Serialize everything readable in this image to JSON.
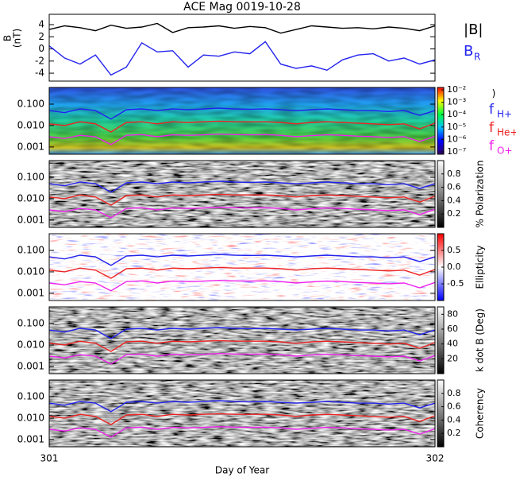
{
  "chart_data": [
    {
      "type": "line",
      "title": "ACE Mag 0019-10-28",
      "ylabel": [
        "B",
        "(nT)"
      ],
      "x": [
        301,
        301.04,
        301.08,
        301.12,
        301.16,
        301.2,
        301.24,
        301.28,
        301.32,
        301.36,
        301.4,
        301.44,
        301.48,
        301.52,
        301.56,
        301.6,
        301.64,
        301.68,
        301.72,
        301.76,
        301.8,
        301.84,
        301.88,
        301.92,
        301.96,
        302
      ],
      "ylim": [
        -5.3,
        5.7
      ],
      "yticks": [
        -4,
        -2,
        0,
        2,
        4
      ],
      "series": [
        {
          "name": "|B|",
          "color": "#000000",
          "values": [
            3.2,
            3.8,
            3.5,
            3.0,
            3.9,
            3.4,
            3.6,
            4.2,
            2.7,
            3.5,
            3.6,
            3.8,
            3.4,
            3.7,
            3.5,
            2.6,
            3.2,
            3.8,
            3.6,
            3.4,
            3.5,
            3.3,
            3.6,
            3.4,
            3.0,
            3.8
          ]
        },
        {
          "name": "B",
          "sub": "R",
          "color": "#2222ee",
          "values": [
            0.5,
            -1.5,
            -2.5,
            -1.0,
            -4.3,
            -3.0,
            1.0,
            -0.5,
            -0.3,
            -3.0,
            -1.0,
            -1.2,
            -0.5,
            -0.8,
            1.2,
            -2.5,
            -3.2,
            -2.8,
            -3.5,
            -1.8,
            -1.0,
            -0.8,
            -2.0,
            -1.5,
            -2.5,
            -1.8
          ]
        }
      ]
    },
    {
      "type": "spectrogram",
      "colormap": "rainbow",
      "log_y": true,
      "x": [
        301,
        301.04,
        301.08,
        301.12,
        301.16,
        301.2,
        301.24,
        301.28,
        301.32,
        301.36,
        301.4,
        301.44,
        301.48,
        301.52,
        301.56,
        301.6,
        301.64,
        301.68,
        301.72,
        301.76,
        301.8,
        301.84,
        301.88,
        301.92,
        301.96,
        302
      ],
      "ylim": [
        0.00046,
        0.6
      ],
      "yticks": [
        {
          "value": 0.1,
          "label": "0.100"
        },
        {
          "value": 0.01,
          "label": "0.010"
        },
        {
          "value": 0.001,
          "label": "0.001"
        }
      ],
      "series": [
        {
          "name": "f",
          "sub": "H+",
          "color": "#2222ee",
          "values": [
            0.05,
            0.04,
            0.06,
            0.05,
            0.02,
            0.055,
            0.06,
            0.05,
            0.06,
            0.055,
            0.06,
            0.065,
            0.06,
            0.058,
            0.06,
            0.055,
            0.05,
            0.055,
            0.06,
            0.055,
            0.05,
            0.05,
            0.045,
            0.05,
            0.03,
            0.05
          ]
        },
        {
          "name": "f",
          "sub": "He+",
          "color": "#ee2222",
          "values": [
            0.012,
            0.01,
            0.015,
            0.012,
            0.005,
            0.014,
            0.015,
            0.012,
            0.015,
            0.014,
            0.015,
            0.016,
            0.015,
            0.015,
            0.015,
            0.014,
            0.012,
            0.014,
            0.015,
            0.014,
            0.013,
            0.012,
            0.011,
            0.012,
            0.007,
            0.013
          ]
        },
        {
          "name": "f",
          "sub": "O+",
          "color": "#ee22ee",
          "values": [
            0.003,
            0.0025,
            0.0035,
            0.003,
            0.0013,
            0.0035,
            0.0038,
            0.003,
            0.0037,
            0.0035,
            0.0037,
            0.004,
            0.0038,
            0.0037,
            0.0038,
            0.0035,
            0.003,
            0.0034,
            0.0037,
            0.0035,
            0.0032,
            0.003,
            0.0028,
            0.003,
            0.0018,
            0.0032
          ]
        }
      ],
      "colorbar": {
        "label": ")",
        "lim": [
          -7.2,
          -1.8
        ],
        "ticks": [
          {
            "value": -2,
            "label": "10⁻²"
          },
          {
            "value": -3,
            "label": "10⁻³"
          },
          {
            "value": -4,
            "label": "10⁻⁴"
          },
          {
            "value": -5,
            "label": "10⁻⁵"
          },
          {
            "value": -6,
            "label": "10⁻⁶"
          },
          {
            "value": -7,
            "label": "10⁻⁷"
          }
        ]
      }
    },
    {
      "type": "spectrogram",
      "colormap": "gray",
      "log_y": true,
      "ylim": [
        0.00046,
        0.6
      ],
      "yticks": [
        {
          "value": 0.1,
          "label": "0.100"
        },
        {
          "value": 0.01,
          "label": "0.010"
        },
        {
          "value": 0.001,
          "label": "0.001"
        }
      ],
      "colorbar": {
        "label": "% Polarization",
        "lim": [
          0,
          1
        ],
        "ticks": [
          0.2,
          0.4,
          0.6,
          0.8
        ]
      }
    },
    {
      "type": "spectrogram",
      "colormap": "bwr",
      "log_y": true,
      "ylim": [
        0.00046,
        0.6
      ],
      "yticks": [
        {
          "value": 0.1,
          "label": "0.100"
        },
        {
          "value": 0.01,
          "label": "0.010"
        },
        {
          "value": 0.001,
          "label": "0.001"
        }
      ],
      "colorbar": {
        "label": "Ellipticity",
        "lim": [
          -1,
          1
        ],
        "ticks": [
          -0.5,
          {
            "value": 0,
            "label": "0.0"
          },
          0.5
        ]
      }
    },
    {
      "type": "spectrogram",
      "colormap": "gray",
      "log_y": true,
      "ylim": [
        0.00046,
        0.6
      ],
      "yticks": [
        {
          "value": 0.1,
          "label": "0.100"
        },
        {
          "value": 0.01,
          "label": "0.010"
        },
        {
          "value": 0.001,
          "label": "0.001"
        }
      ],
      "colorbar": {
        "label": "k dot B (Deg)",
        "lim": [
          0,
          90
        ],
        "ticks": [
          20,
          40,
          60,
          80
        ]
      }
    },
    {
      "type": "spectrogram",
      "colormap": "gray",
      "log_y": true,
      "ylim": [
        0.00046,
        0.6
      ],
      "yticks": [
        {
          "value": 0.1,
          "label": "0.100"
        },
        {
          "value": 0.01,
          "label": "0.010"
        },
        {
          "value": 0.001,
          "label": "0.001"
        }
      ],
      "colorbar": {
        "label": "Coherency",
        "lim": [
          0,
          1
        ],
        "ticks": [
          0.2,
          0.4,
          0.6,
          0.8
        ]
      },
      "xlim": [
        301,
        302
      ],
      "xticks": [
        301,
        302
      ],
      "xlabel": "Day of Year"
    }
  ]
}
